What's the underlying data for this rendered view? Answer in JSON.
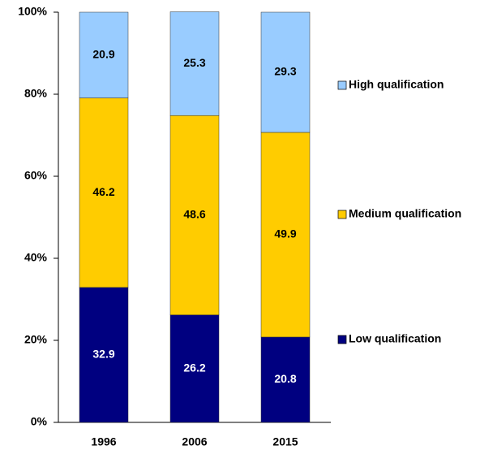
{
  "chart_data": {
    "type": "stacked_bar",
    "categories": [
      "1996",
      "2006",
      "2015"
    ],
    "series": [
      {
        "name": "Low qualification",
        "color": "#000080",
        "values": [
          32.9,
          26.2,
          20.8
        ]
      },
      {
        "name": "Medium qualification",
        "color": "#ffcc00",
        "values": [
          46.2,
          48.6,
          49.9
        ]
      },
      {
        "name": "High qualification",
        "color": "#99ccff",
        "values": [
          20.9,
          25.3,
          29.3
        ]
      }
    ],
    "ylim": [
      0,
      100
    ],
    "yticks": [
      {
        "value": 0,
        "label": "0%"
      },
      {
        "value": 20,
        "label": "20%"
      },
      {
        "value": 40,
        "label": "40%"
      },
      {
        "value": 60,
        "label": "60%"
      },
      {
        "value": 80,
        "label": "80%"
      },
      {
        "value": 100,
        "label": "100%"
      }
    ],
    "legend": "right"
  }
}
